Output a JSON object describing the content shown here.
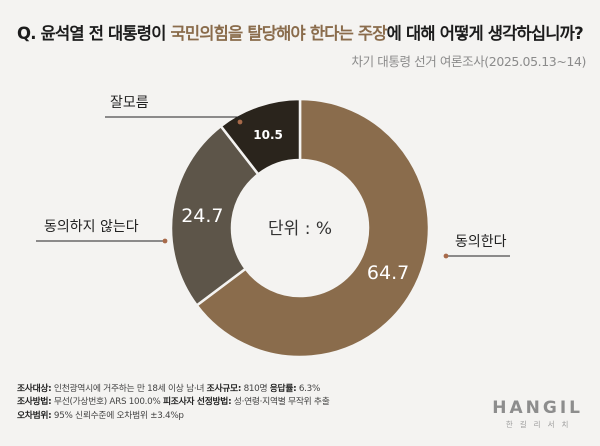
{
  "title": {
    "prefix": "Q. 윤석열 전 대통령이 ",
    "highlight": "국민의힘을 탈당해야 한다는 주장",
    "suffix": "에 대해 어떻게 생각하십니까?"
  },
  "subtitle": "차기 대통령 선거 여론조사(2025.05.13~14)",
  "chart_data": {
    "type": "pie",
    "center_label": "단위 : %",
    "slices": [
      {
        "label": "동의한다",
        "value": 64.7,
        "color": "#8a6c4c",
        "value_color": "#ffffff"
      },
      {
        "label": "동의하지 않는다",
        "value": 24.7,
        "color": "#5d5549",
        "value_color": "#ffffff"
      },
      {
        "label": "잘모름",
        "value": 10.5,
        "color": "#2a241c",
        "value_color": "#ffffff"
      }
    ]
  },
  "footer": {
    "line1": [
      {
        "k": "조사대상:",
        "v": " 인천광역시에 거주하는 만 18세 이상 남·녀    "
      },
      {
        "k": "조사규모:",
        "v": " 810명    "
      },
      {
        "k": "응답률:",
        "v": " 6.3%"
      }
    ],
    "line2": [
      {
        "k": "조사방법:",
        "v": " 무선(가상번호) ARS 100.0%    "
      },
      {
        "k": "피조사자 선정방법:",
        "v": " 성·연령·지역별 무작위 추출"
      }
    ],
    "line3": [
      {
        "k": "오차범위:",
        "v": " 95% 신뢰수준에 오차범위 ±3.4%p"
      }
    ]
  },
  "logo": {
    "en": "HANGIL",
    "ko": "한길리서치"
  }
}
